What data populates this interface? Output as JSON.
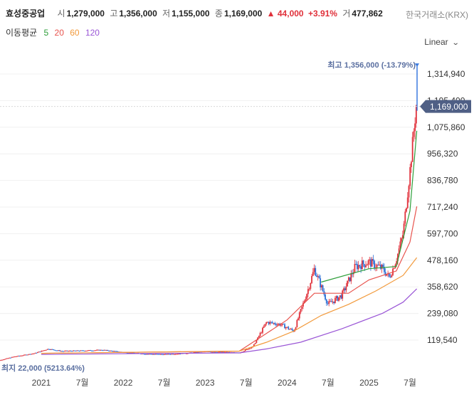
{
  "header": {
    "name": "효성중공업",
    "open_label": "시",
    "open": "1,279,000",
    "high_label": "고",
    "high": "1,356,000",
    "low_label": "저",
    "low": "1,155,000",
    "close_label": "종",
    "close": "1,169,000",
    "change": "▲ 44,000",
    "change_pct": "+3.91%",
    "volume_label": "거",
    "volume": "477,862",
    "exchange": "한국거래소(KRX)"
  },
  "ma": {
    "label": "이동평균",
    "items": [
      {
        "period": "5",
        "color": "#2e9e3a"
      },
      {
        "period": "20",
        "color": "#e8534d"
      },
      {
        "period": "60",
        "color": "#f29a3c"
      },
      {
        "period": "120",
        "color": "#9a56d6"
      }
    ]
  },
  "scale": {
    "label": "Linear",
    "icon": "chevron-down-icon"
  },
  "colors": {
    "up": "#e0303a",
    "down": "#2b6fd6",
    "label_bg": "#4f5f85",
    "annotation": "#5a6fa0"
  },
  "chart_data": {
    "type": "candlestick",
    "title": "효성중공업",
    "y_ticks": [
      119540,
      239080,
      358620,
      478160,
      597700,
      717240,
      836780,
      956320,
      1075860,
      1195400,
      1314940
    ],
    "y_tick_labels": [
      "119,540",
      "239,080",
      "358,620",
      "478,160",
      "597,700",
      "717,240",
      "836,780",
      "956,320",
      "1,075,860",
      "1,195,400",
      "1,314,940"
    ],
    "x_ticks": [
      "2021-01",
      "2021-07",
      "2022-01",
      "2022-07",
      "2023-01",
      "2023-07",
      "2024-01",
      "2024-07",
      "2025-01",
      "2025-07"
    ],
    "x_tick_labels": [
      "2021",
      "7월",
      "2022",
      "7월",
      "2023",
      "7월",
      "2024",
      "7월",
      "2025",
      "7월"
    ],
    "x_range": [
      "2020-06",
      "2025-12"
    ],
    "y_range": [
      0,
      1420000
    ],
    "last_price": 1169000,
    "last_price_label": "1,169,000",
    "high_annotation": {
      "text": "최고 1,356,000 (-13.79%)",
      "value": 1356000,
      "date": "2025-08"
    },
    "low_annotation": {
      "text": "최지 22,000 (5213.64%)",
      "value": 22000,
      "date": "2020-06"
    },
    "price_points": [
      [
        "2020-06",
        22000
      ],
      [
        "2020-09",
        45000
      ],
      [
        "2020-12",
        60000
      ],
      [
        "2021-02",
        80000
      ],
      [
        "2021-04",
        70000
      ],
      [
        "2021-07",
        72000
      ],
      [
        "2021-10",
        75000
      ],
      [
        "2022-01",
        65000
      ],
      [
        "2022-04",
        58000
      ],
      [
        "2022-07",
        55000
      ],
      [
        "2022-10",
        60000
      ],
      [
        "2023-01",
        68000
      ],
      [
        "2023-04",
        65000
      ],
      [
        "2023-06",
        62000
      ],
      [
        "2023-08",
        90000
      ],
      [
        "2023-10",
        200000
      ],
      [
        "2023-12",
        190000
      ],
      [
        "2024-02",
        160000
      ],
      [
        "2024-04",
        340000
      ],
      [
        "2024-05",
        440000
      ],
      [
        "2024-07",
        280000
      ],
      [
        "2024-09",
        320000
      ],
      [
        "2024-11",
        450000
      ],
      [
        "2025-01",
        470000
      ],
      [
        "2025-03",
        440000
      ],
      [
        "2025-04",
        400000
      ],
      [
        "2025-05",
        480000
      ],
      [
        "2025-06",
        600000
      ],
      [
        "2025-07",
        880000
      ],
      [
        "2025-08",
        1200000
      ],
      [
        "2025-08",
        1169000
      ]
    ],
    "series": [
      {
        "name": "5",
        "color": "#2e9e3a",
        "points": [
          [
            "2024-06",
            380000
          ],
          [
            "2025-01",
            440000
          ],
          [
            "2025-05",
            450000
          ],
          [
            "2025-07",
            700000
          ],
          [
            "2025-08",
            1060000
          ]
        ]
      },
      {
        "name": "20",
        "color": "#e8534d",
        "points": [
          [
            "2021-01",
            60000
          ],
          [
            "2023-06",
            70000
          ],
          [
            "2023-10",
            150000
          ],
          [
            "2024-01",
            210000
          ],
          [
            "2024-05",
            330000
          ],
          [
            "2024-10",
            330000
          ],
          [
            "2025-01",
            390000
          ],
          [
            "2025-05",
            430000
          ],
          [
            "2025-07",
            560000
          ],
          [
            "2025-08",
            720000
          ]
        ]
      },
      {
        "name": "60",
        "color": "#f29a3c",
        "points": [
          [
            "2021-01",
            60000
          ],
          [
            "2023-06",
            70000
          ],
          [
            "2023-10",
            110000
          ],
          [
            "2024-02",
            160000
          ],
          [
            "2024-06",
            230000
          ],
          [
            "2024-10",
            280000
          ],
          [
            "2025-02",
            340000
          ],
          [
            "2025-06",
            410000
          ],
          [
            "2025-08",
            490000
          ]
        ]
      },
      {
        "name": "120",
        "color": "#9a56d6",
        "points": [
          [
            "2021-01",
            55000
          ],
          [
            "2022-07",
            60000
          ],
          [
            "2023-06",
            62000
          ],
          [
            "2023-10",
            80000
          ],
          [
            "2024-03",
            110000
          ],
          [
            "2024-09",
            170000
          ],
          [
            "2025-03",
            240000
          ],
          [
            "2025-06",
            290000
          ],
          [
            "2025-08",
            350000
          ]
        ]
      }
    ]
  }
}
